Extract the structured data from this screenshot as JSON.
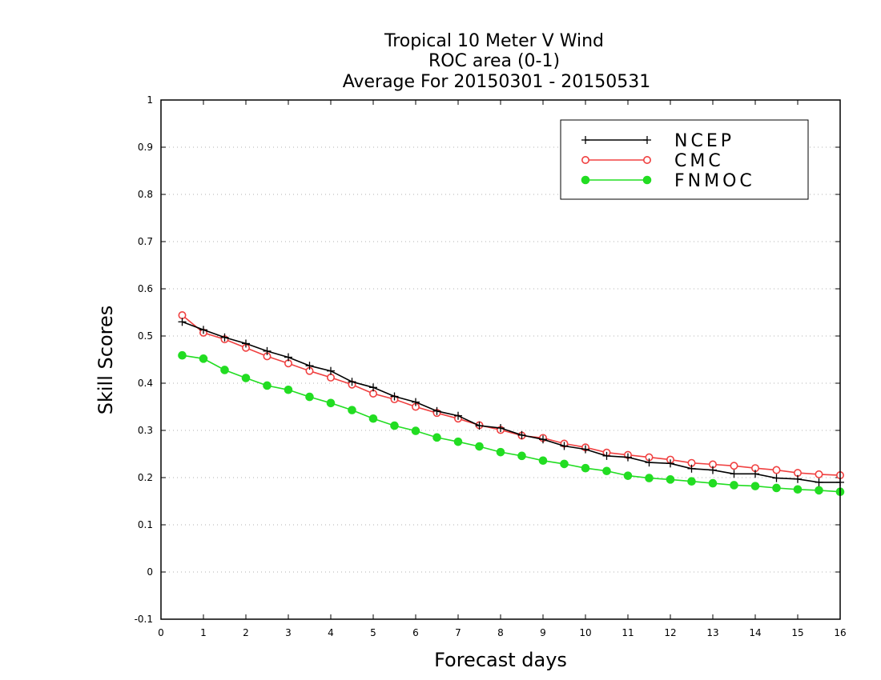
{
  "chart_data": {
    "type": "line",
    "title": [
      "Tropical 10 Meter V Wind",
      "ROC area (0-1)",
      "Average For 20150301 - 20150531"
    ],
    "xlabel": "Forecast days",
    "ylabel": "Skill Scores",
    "xlim": [
      0,
      16
    ],
    "ylim": [
      -0.1,
      1
    ],
    "xticks": [
      0,
      1,
      2,
      3,
      4,
      5,
      6,
      7,
      8,
      9,
      10,
      11,
      12,
      13,
      14,
      15,
      16
    ],
    "xtick_labels": [
      "0",
      "1",
      "2",
      "3",
      "4",
      "5",
      "6",
      "7",
      "8",
      "9",
      "10",
      "11",
      "12",
      "13",
      "14",
      "15",
      "16"
    ],
    "yticks": [
      -0.1,
      0,
      0.1,
      0.2,
      0.3,
      0.4,
      0.5,
      0.6,
      0.7,
      0.8,
      0.9,
      1
    ],
    "ytick_labels": [
      "-0.1",
      "0",
      "0.1",
      "0.2",
      "0.3",
      "0.4",
      "0.5",
      "0.6",
      "0.7",
      "0.8",
      "0.9",
      "1"
    ],
    "grid": true,
    "legend_position": "top-right",
    "x": [
      0.5,
      1,
      1.5,
      2,
      2.5,
      3,
      3.5,
      4,
      4.5,
      5,
      5.5,
      6,
      6.5,
      7,
      7.5,
      8,
      8.5,
      9,
      9.5,
      10,
      10.5,
      11,
      11.5,
      12,
      12.5,
      13,
      13.5,
      14,
      14.5,
      15,
      15.5,
      16
    ],
    "series": [
      {
        "name": "NCEP",
        "color": "#000000",
        "marker": "plus",
        "values": [
          0.53,
          0.513,
          0.497,
          0.484,
          0.468,
          0.455,
          0.437,
          0.426,
          0.403,
          0.391,
          0.372,
          0.36,
          0.341,
          0.331,
          0.31,
          0.305,
          0.29,
          0.281,
          0.267,
          0.26,
          0.246,
          0.243,
          0.232,
          0.23,
          0.219,
          0.216,
          0.208,
          0.208,
          0.199,
          0.197,
          0.19,
          0.19
        ]
      },
      {
        "name": "CMC",
        "color": "#f04040",
        "marker": "open-circle",
        "values": [
          0.544,
          0.507,
          0.493,
          0.475,
          0.457,
          0.442,
          0.426,
          0.412,
          0.397,
          0.378,
          0.366,
          0.35,
          0.337,
          0.325,
          0.311,
          0.301,
          0.289,
          0.284,
          0.272,
          0.264,
          0.253,
          0.248,
          0.243,
          0.238,
          0.231,
          0.228,
          0.225,
          0.22,
          0.216,
          0.21,
          0.207,
          0.205
        ]
      },
      {
        "name": "FNMOC",
        "color": "#22dd22",
        "marker": "filled-circle",
        "values": [
          0.459,
          0.452,
          0.428,
          0.411,
          0.395,
          0.386,
          0.371,
          0.358,
          0.343,
          0.325,
          0.31,
          0.299,
          0.285,
          0.276,
          0.266,
          0.254,
          0.246,
          0.236,
          0.229,
          0.22,
          0.214,
          0.204,
          0.199,
          0.196,
          0.192,
          0.188,
          0.184,
          0.182,
          0.178,
          0.175,
          0.173,
          0.17
        ]
      }
    ]
  }
}
